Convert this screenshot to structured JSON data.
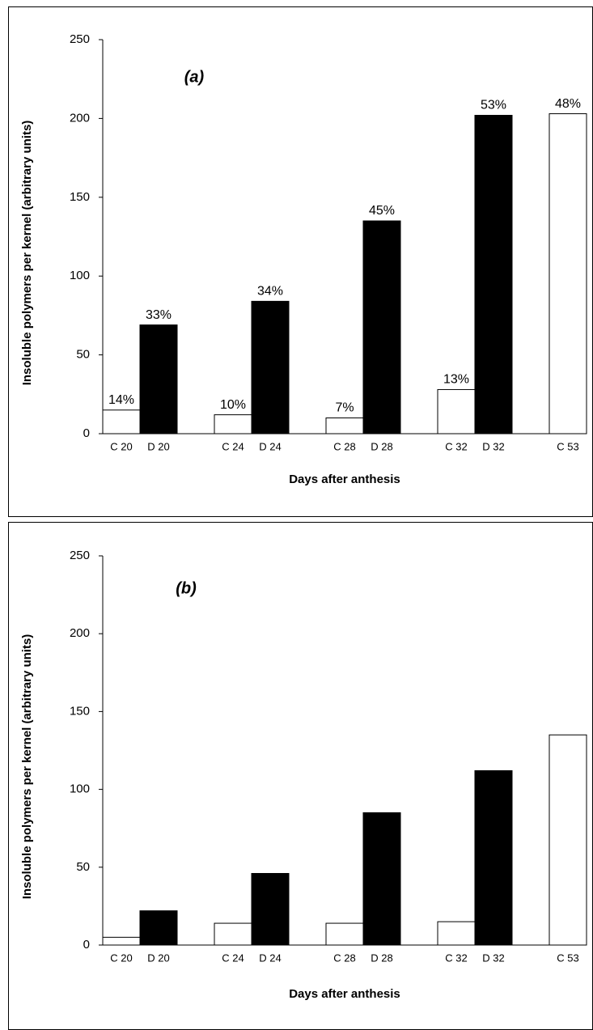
{
  "chart_data": [
    {
      "type": "bar",
      "title": "(a)",
      "y_label": "Insoluble polymers per kernel (arbitrary units)",
      "x_label": "Days after anthesis",
      "categories": [
        "C 20",
        "D 20",
        "C 24",
        "D 24",
        "C 28",
        "D 28",
        "C 32",
        "D 32",
        "C 53"
      ],
      "values": [
        15,
        69,
        12,
        84,
        10,
        135,
        28,
        202,
        203
      ],
      "colors": [
        "#ffffff",
        "#000000",
        "#ffffff",
        "#000000",
        "#ffffff",
        "#000000",
        "#ffffff",
        "#000000",
        "#ffffff"
      ],
      "annotations": [
        "14%",
        "33%",
        "10%",
        "34%",
        "7%",
        "45%",
        "13%",
        "53%",
        "48%"
      ],
      "ylim": [
        0,
        250
      ],
      "yticks": [
        0,
        50,
        100,
        150,
        200,
        250
      ]
    },
    {
      "type": "bar",
      "title": "(b)",
      "y_label": "Insoluble polymers per kernel (arbitrary units)",
      "x_label": "Days after anthesis",
      "categories": [
        "C 20",
        "D 20",
        "C 24",
        "D 24",
        "C 28",
        "D 28",
        "C 32",
        "D 32",
        "C 53"
      ],
      "values": [
        5,
        22,
        14,
        46,
        14,
        85,
        15,
        112,
        135
      ],
      "colors": [
        "#ffffff",
        "#000000",
        "#ffffff",
        "#000000",
        "#ffffff",
        "#000000",
        "#ffffff",
        "#000000",
        "#ffffff"
      ],
      "ylim": [
        0,
        250
      ],
      "yticks": [
        0,
        50,
        100,
        150,
        200,
        250
      ]
    }
  ]
}
